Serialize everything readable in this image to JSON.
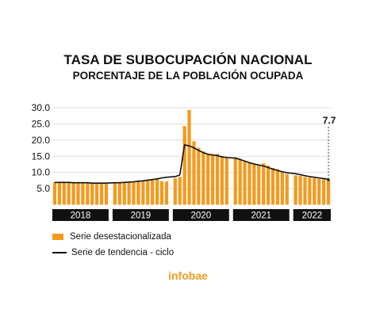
{
  "header": {
    "title": "TASA DE SUBOCUPACIÓN NACIONAL",
    "subtitle": "PORCENTAJE DE LA POBLACIÓN OCUPADA"
  },
  "chart_data": {
    "type": "bar",
    "yticks": [
      "30.0",
      "25.0",
      "20.0",
      "15.0",
      "10.0",
      "5.0"
    ],
    "ylim": [
      0,
      30
    ],
    "years": [
      {
        "label": "2018",
        "months": 12
      },
      {
        "label": "2019",
        "months": 12
      },
      {
        "label": "2020",
        "months": 12
      },
      {
        "label": "2021",
        "months": 12
      },
      {
        "label": "2022",
        "months": 8
      }
    ],
    "series": [
      {
        "name": "Serie desestacionalizada",
        "type": "bar",
        "values": [
          7.0,
          7.0,
          6.9,
          6.9,
          6.9,
          6.8,
          6.8,
          6.8,
          6.8,
          6.8,
          6.7,
          6.7,
          6.7,
          6.8,
          6.9,
          7.0,
          7.1,
          7.2,
          7.4,
          7.5,
          7.7,
          7.9,
          7.3,
          7.2,
          8.2,
          8.6,
          24.3,
          29.3,
          19.6,
          17.6,
          16.5,
          15.8,
          15.6,
          15.7,
          14.7,
          14.5,
          14.7,
          14.2,
          13.3,
          13.0,
          12.6,
          12.2,
          12.8,
          12.1,
          11.4,
          11.0,
          10.1,
          9.5,
          9.1,
          8.9,
          8.6,
          8.4,
          8.2,
          8.0,
          7.9,
          7.7
        ]
      },
      {
        "name": "Serie de tendencia - ciclo",
        "type": "line",
        "values": [
          6.9,
          6.9,
          6.9,
          6.9,
          6.8,
          6.8,
          6.8,
          6.8,
          6.7,
          6.7,
          6.7,
          6.7,
          6.8,
          6.8,
          6.9,
          7.0,
          7.1,
          7.3,
          7.4,
          7.6,
          7.8,
          8.0,
          8.3,
          8.5,
          8.7,
          9.2,
          18.5,
          18.2,
          17.6,
          16.8,
          16.1,
          15.6,
          15.4,
          15.2,
          14.8,
          14.6,
          14.4,
          14.0,
          13.5,
          13.0,
          12.6,
          12.3,
          12.0,
          11.5,
          11.0,
          10.6,
          10.2,
          9.9,
          9.6,
          9.3,
          9.0,
          8.7,
          8.5,
          8.3,
          8.1,
          7.9
        ]
      }
    ],
    "annotation": "7.7",
    "colors": {
      "bar": "#F39A1E",
      "line": "#111111",
      "year_band": "#111111"
    }
  },
  "legend": {
    "bar_label": "Serie desestacionalizada",
    "line_label": "Serie de tendencia - ciclo"
  },
  "brand": "infobae"
}
